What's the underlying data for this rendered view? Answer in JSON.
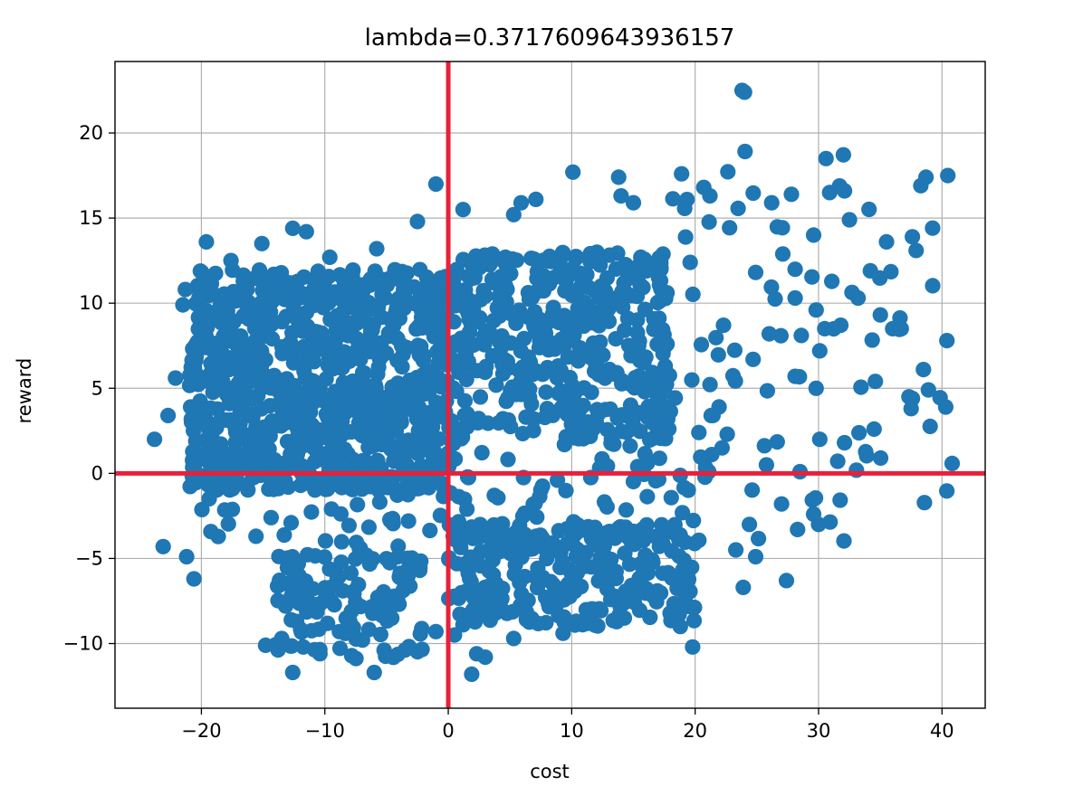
{
  "chart_data": {
    "type": "scatter",
    "title": "lambda=0.3717609643936157",
    "xlabel": "cost",
    "ylabel": "reward",
    "xlim": [
      -27,
      43.5
    ],
    "ylim": [
      -13.8,
      24.2
    ],
    "x_ticks": [
      -20,
      -10,
      0,
      10,
      20,
      30,
      40
    ],
    "x_tick_labels": [
      "−20",
      "−10",
      "0",
      "10",
      "20",
      "30",
      "40"
    ],
    "y_ticks": [
      -10,
      -5,
      0,
      5,
      10,
      15,
      20
    ],
    "y_tick_labels": [
      "−10",
      "−5",
      "0",
      "5",
      "10",
      "15",
      "20"
    ],
    "grid": true,
    "marker_color": "#1f77b4",
    "reference_lines": {
      "color": "#e8203a",
      "x": 0,
      "y": 0
    },
    "clusters": [
      {
        "x_range": [
          -21,
          0
        ],
        "y_range": [
          -1,
          12
        ],
        "count": 900
      },
      {
        "x_range": [
          -14,
          -2
        ],
        "y_range": [
          -11,
          -4
        ],
        "count": 130
      },
      {
        "x_range": [
          0,
          18
        ],
        "y_range": [
          2,
          13
        ],
        "count": 420
      },
      {
        "x_range": [
          0,
          20
        ],
        "y_range": [
          -9,
          -3
        ],
        "count": 280
      },
      {
        "x_range": [
          -21,
          20
        ],
        "y_range": [
          -4,
          2
        ],
        "count": 140
      },
      {
        "x_range": [
          18,
          41
        ],
        "y_range": [
          -4,
          19
        ],
        "count": 80
      }
    ],
    "points": [
      [
        24,
        22.4
      ],
      [
        -23.8,
        2.0
      ],
      [
        -23.1,
        -4.3
      ],
      [
        -22.7,
        3.4
      ],
      [
        -22.1,
        5.6
      ],
      [
        -21.3,
        10.8
      ],
      [
        -21.5,
        9.9
      ],
      [
        -21.2,
        -4.9
      ],
      [
        -20.6,
        -6.2
      ],
      [
        -19.6,
        13.6
      ],
      [
        -17.6,
        12.5
      ],
      [
        -15.1,
        13.5
      ],
      [
        -12.6,
        14.4
      ],
      [
        -11.5,
        14.2
      ],
      [
        -9.6,
        12.7
      ],
      [
        -5.8,
        13.2
      ],
      [
        -4.0,
        11.4
      ],
      [
        -2.5,
        14.8
      ],
      [
        -1.0,
        17.0
      ],
      [
        1.2,
        15.5
      ],
      [
        5.3,
        15.2
      ],
      [
        5.9,
        15.9
      ],
      [
        7.1,
        16.1
      ],
      [
        10.1,
        17.7
      ],
      [
        13.8,
        17.4
      ],
      [
        14.0,
        16.3
      ],
      [
        15.0,
        15.9
      ],
      [
        18.9,
        17.6
      ],
      [
        20.7,
        16.8
      ],
      [
        21.2,
        16.3
      ],
      [
        23.8,
        22.5
      ],
      [
        26.2,
        15.9
      ],
      [
        27.8,
        16.4
      ],
      [
        30.6,
        18.5
      ],
      [
        30.9,
        16.5
      ],
      [
        32.1,
        16.6
      ],
      [
        32.5,
        14.9
      ],
      [
        38.7,
        17.4
      ],
      [
        29.6,
        14.0
      ],
      [
        35.5,
        13.6
      ],
      [
        37.6,
        13.9
      ],
      [
        37.9,
        13.1
      ],
      [
        34.2,
        11.9
      ],
      [
        33.2,
        10.3
      ],
      [
        36.0,
        8.5
      ],
      [
        36.7,
        8.5
      ],
      [
        40.4,
        7.8
      ],
      [
        38.5,
        6.1
      ],
      [
        38.9,
        4.9
      ],
      [
        37.6,
        4.4
      ],
      [
        37.5,
        3.8
      ],
      [
        40.3,
        3.9
      ],
      [
        34.6,
        5.4
      ],
      [
        34.5,
        2.6
      ],
      [
        32.1,
        1.8
      ],
      [
        30.1,
        2.0
      ],
      [
        29.8,
        5.0
      ],
      [
        30.1,
        7.2
      ],
      [
        29.8,
        9.6
      ],
      [
        30.5,
        8.5
      ],
      [
        28.1,
        10.3
      ],
      [
        28.6,
        8.1
      ],
      [
        28.1,
        5.7
      ],
      [
        27.0,
        -1.8
      ],
      [
        27.4,
        -6.3
      ],
      [
        28.5,
        0.1
      ],
      [
        29.6,
        -2.4
      ],
      [
        30.0,
        -3.0
      ],
      [
        28.3,
        -3.3
      ],
      [
        24.9,
        -4.9
      ],
      [
        24.4,
        -3.0
      ],
      [
        23.9,
        -6.7
      ],
      [
        23.3,
        -4.5
      ],
      [
        19.8,
        -10.2
      ],
      [
        18.8,
        -9.0
      ],
      [
        21.1,
        0.1
      ],
      [
        22.6,
        2.3
      ],
      [
        20.3,
        2.4
      ],
      [
        21.3,
        3.4
      ],
      [
        24.7,
        6.7
      ],
      [
        26.0,
        8.2
      ],
      [
        31.8,
        8.7
      ],
      [
        22.3,
        8.7
      ],
      [
        2.3,
        -10.6
      ],
      [
        1.9,
        -11.8
      ],
      [
        3.0,
        -10.8
      ],
      [
        -12.6,
        -11.7
      ],
      [
        -6.0,
        -11.7
      ],
      [
        -14.8,
        -10.1
      ],
      [
        -10.4,
        -10.6
      ],
      [
        0.5,
        -9.5
      ],
      [
        5.3,
        -9.7
      ],
      [
        9.3,
        -9.4
      ],
      [
        -1.0,
        -9.3
      ]
    ]
  }
}
